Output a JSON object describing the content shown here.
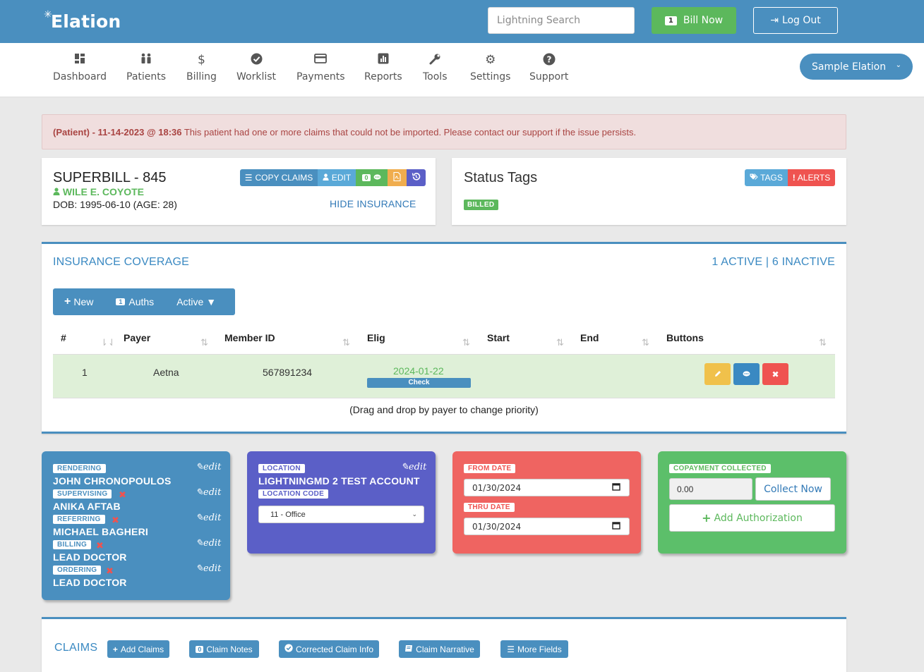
{
  "header": {
    "logo_text": "Elation",
    "search_placeholder": "Lightning Search",
    "bill_now_count": "1",
    "bill_now_label": "Bill Now",
    "logout_label": "Log Out"
  },
  "nav": {
    "items": [
      {
        "label": "Dashboard",
        "icon": "dashboard-icon"
      },
      {
        "label": "Patients",
        "icon": "users-icon"
      },
      {
        "label": "Billing",
        "icon": "dollar-icon"
      },
      {
        "label": "Worklist",
        "icon": "check-circle-icon"
      },
      {
        "label": "Payments",
        "icon": "credit-card-icon"
      },
      {
        "label": "Reports",
        "icon": "bar-chart-icon"
      },
      {
        "label": "Tools",
        "icon": "wrench-icon"
      },
      {
        "label": "Settings",
        "icon": "gear-icon"
      },
      {
        "label": "Support",
        "icon": "question-circle-icon"
      }
    ],
    "account_label": "Sample Elation"
  },
  "alert": {
    "prefix": "(Patient) - 11-14-2023 @ 18:36",
    "message": " This patient had one or more claims that could not be imported. Please contact our support if the issue persists."
  },
  "superbill": {
    "title": "SUPERBILL - 845",
    "patient_name": "WILE E. COYOTE",
    "dob": "DOB: 1995-06-10 (AGE: 28)",
    "copy_claims_label": "COPY CLAIMS",
    "edit_label": "EDIT",
    "notes_count": "0",
    "hide_insurance_label": "HIDE INSURANCE"
  },
  "status_tags": {
    "title": "Status Tags",
    "tags_label": "TAGS",
    "alerts_label": "ALERTS",
    "badge": "BILLED"
  },
  "insurance": {
    "title": "INSURANCE COVERAGE",
    "summary": "1 ACTIVE | 6 INACTIVE",
    "toolbar": {
      "new_label": "New",
      "auths_count": "1",
      "auths_label": "Auths",
      "active_label": "Active ▼"
    },
    "columns": [
      "#",
      "Payer",
      "Member ID",
      "Elig",
      "Start",
      "End",
      "Buttons"
    ],
    "rows": [
      {
        "num": "1",
        "payer": "Aetna",
        "member_id": "567891234",
        "elig_date": "2024-01-22",
        "check_label": "Check",
        "start": "",
        "end": ""
      }
    ],
    "drag_note": "(Drag and drop by payer to change priority)"
  },
  "providers": {
    "edit_label": "edit",
    "items": [
      {
        "role": "RENDERING",
        "name": "JOHN CHRONOPOULOS"
      },
      {
        "role": "SUPERVISING",
        "name": "ANIKA AFTAB"
      },
      {
        "role": "REFERRING",
        "name": "MICHAEL BAGHERI"
      },
      {
        "role": "BILLING",
        "name": "LEAD DOCTOR"
      },
      {
        "role": "ORDERING",
        "name": "LEAD DOCTOR"
      }
    ]
  },
  "location": {
    "label": "LOCATION",
    "name": "LIGHTNINGMD 2 TEST ACCOUNT",
    "code_label": "LOCATION CODE",
    "code_value": "11 - Office",
    "edit_label": "edit"
  },
  "dates": {
    "from_label": "FROM DATE",
    "from_value": "01/30/2024",
    "thru_label": "THRU DATE",
    "thru_value": "01/30/2024"
  },
  "copay": {
    "label": "COPAYMENT COLLECTED",
    "value": "0.00",
    "collect_label": "Collect Now",
    "add_auth_label": "Add Authorization"
  },
  "claims": {
    "title": "CLAIMS",
    "add_claims_label": "Add Claims",
    "notes_count": "0",
    "claim_notes_label": "Claim Notes",
    "corrected_label": "Corrected Claim Info",
    "narrative_label": "Claim Narrative",
    "more_fields_label": "More Fields"
  },
  "colors": {
    "brand_blue": "#4a8fbf",
    "success_green": "#5cb85c",
    "danger_red": "#ef5350",
    "warning_orange": "#f0ad4e",
    "location_purple": "#5b5fc7"
  }
}
